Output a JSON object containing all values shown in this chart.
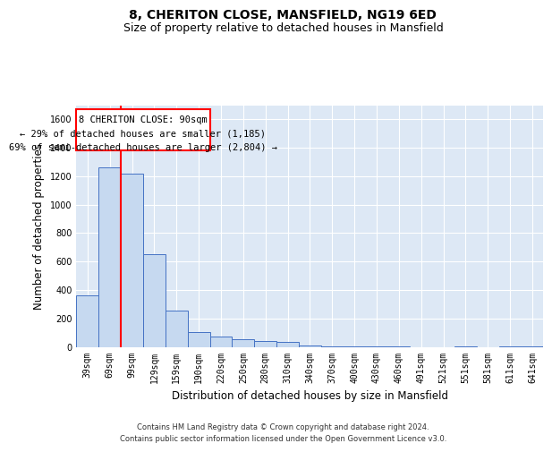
{
  "title1": "8, CHERITON CLOSE, MANSFIELD, NG19 6ED",
  "title2": "Size of property relative to detached houses in Mansfield",
  "xlabel": "Distribution of detached houses by size in Mansfield",
  "ylabel": "Number of detached properties",
  "bar_color": "#c6d9f0",
  "bar_edge_color": "#4472c4",
  "background_color": "#dde8f5",
  "annotation_box_color": "#cc0000",
  "annotation_line1": "8 CHERITON CLOSE: 90sqm",
  "annotation_line2": "← 29% of detached houses are smaller (1,185)",
  "annotation_line3": "69% of semi-detached houses are larger (2,804) →",
  "footer": "Contains HM Land Registry data © Crown copyright and database right 2024.\nContains public sector information licensed under the Open Government Licence v3.0.",
  "categories": [
    "39sqm",
    "69sqm",
    "99sqm",
    "129sqm",
    "159sqm",
    "190sqm",
    "220sqm",
    "250sqm",
    "280sqm",
    "310sqm",
    "340sqm",
    "370sqm",
    "400sqm",
    "430sqm",
    "460sqm",
    "491sqm",
    "521sqm",
    "551sqm",
    "581sqm",
    "611sqm",
    "641sqm"
  ],
  "values": [
    360,
    1265,
    1220,
    650,
    255,
    105,
    75,
    55,
    40,
    35,
    10,
    5,
    5,
    5,
    5,
    0,
    0,
    5,
    0,
    5,
    3
  ],
  "ylim": [
    0,
    1700
  ],
  "yticks": [
    0,
    200,
    400,
    600,
    800,
    1000,
    1200,
    1400,
    1600
  ],
  "red_line_x": 1.5,
  "grid_color": "#ffffff",
  "title_fontsize": 10,
  "subtitle_fontsize": 9,
  "tick_fontsize": 7,
  "label_fontsize": 8.5,
  "footer_fontsize": 6
}
